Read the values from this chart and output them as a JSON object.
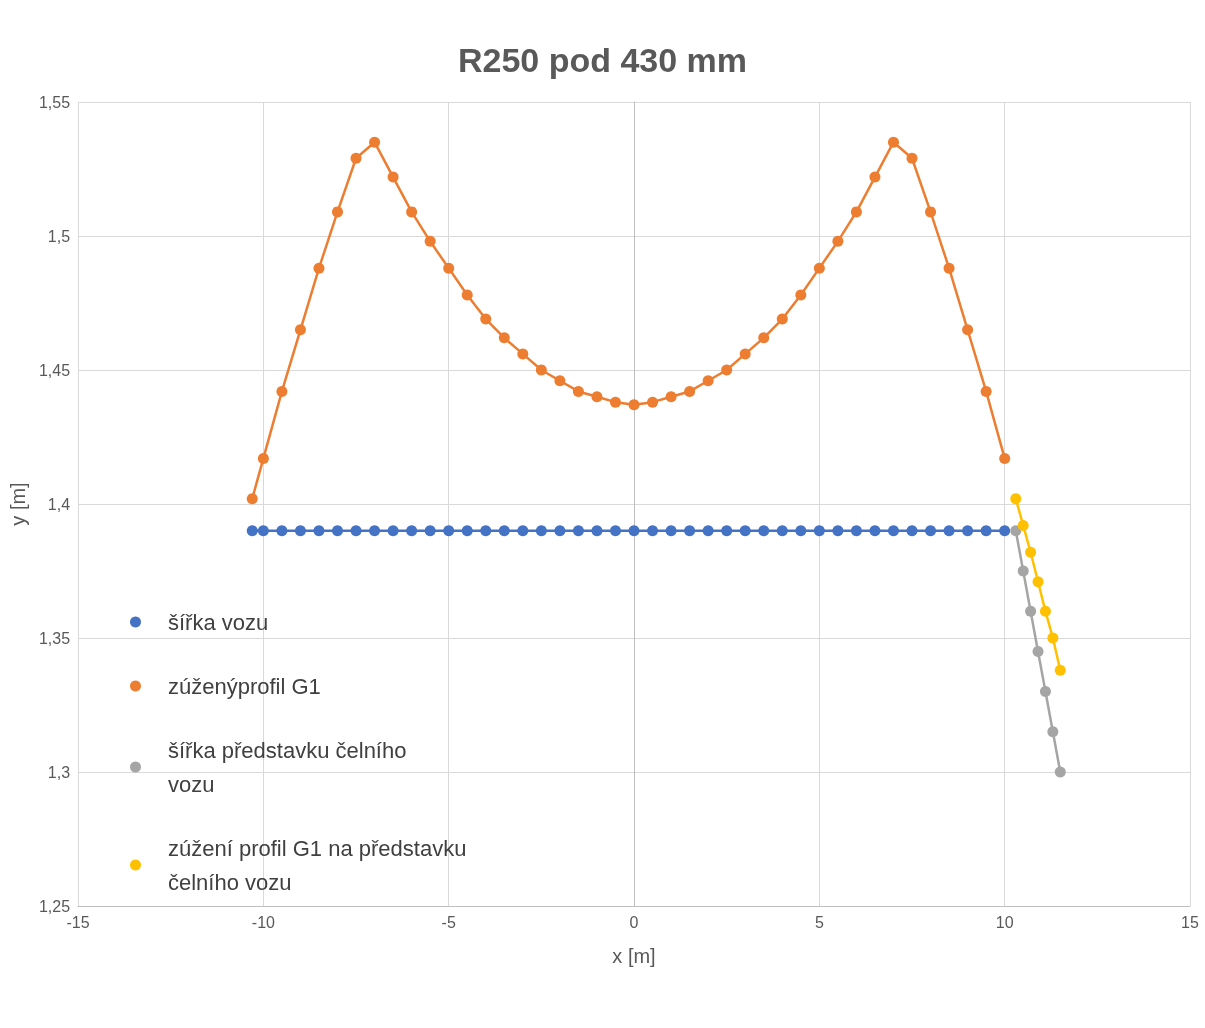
{
  "chart_data": {
    "type": "line",
    "title": "R250 pod 430 mm",
    "xlabel": "x [m]",
    "ylabel": "y [m]",
    "xlim": [
      -15,
      15
    ],
    "xticks": [
      -15,
      -10,
      -5,
      0,
      5,
      10,
      15
    ],
    "ylim": [
      1.25,
      1.55
    ],
    "yticks": [
      {
        "value": 1.25,
        "label": "1,25"
      },
      {
        "value": 1.3,
        "label": "1,3"
      },
      {
        "value": 1.35,
        "label": "1,35"
      },
      {
        "value": 1.4,
        "label": "1,4"
      },
      {
        "value": 1.45,
        "label": "1,45"
      },
      {
        "value": 1.5,
        "label": "1,5"
      },
      {
        "value": 1.55,
        "label": "1,55"
      }
    ],
    "grid": true,
    "legend": "left",
    "marker": "circle",
    "line_style": "solid",
    "series": [
      {
        "name": "šířka vozu",
        "color": "#4472c4",
        "x": [
          -10.3,
          -10,
          -9.5,
          -9,
          -8.5,
          -8,
          -7.5,
          -7,
          -6.5,
          -6,
          -5.5,
          -5,
          -4.5,
          -4,
          -3.5,
          -3,
          -2.5,
          -2,
          -1.5,
          -1,
          -0.5,
          0,
          0.5,
          1,
          1.5,
          2,
          2.5,
          3,
          3.5,
          4,
          4.5,
          5,
          5.5,
          6,
          6.5,
          7,
          7.5,
          8,
          8.5,
          9,
          9.5,
          10
        ],
        "values": [
          1.39,
          1.39,
          1.39,
          1.39,
          1.39,
          1.39,
          1.39,
          1.39,
          1.39,
          1.39,
          1.39,
          1.39,
          1.39,
          1.39,
          1.39,
          1.39,
          1.39,
          1.39,
          1.39,
          1.39,
          1.39,
          1.39,
          1.39,
          1.39,
          1.39,
          1.39,
          1.39,
          1.39,
          1.39,
          1.39,
          1.39,
          1.39,
          1.39,
          1.39,
          1.39,
          1.39,
          1.39,
          1.39,
          1.39,
          1.39,
          1.39,
          1.39
        ]
      },
      {
        "name": "zúženýprofil G1",
        "color": "#ed7d31",
        "x": [
          -10.3,
          -10,
          -9.5,
          -9,
          -8.5,
          -8,
          -7.5,
          -7,
          -6.5,
          -6,
          -5.5,
          -5,
          -4.5,
          -4,
          -3.5,
          -3,
          -2.5,
          -2,
          -1.5,
          -1,
          -0.5,
          0,
          0.5,
          1,
          1.5,
          2,
          2.5,
          3,
          3.5,
          4,
          4.5,
          5,
          5.5,
          6,
          6.5,
          7,
          7.5,
          8,
          8.5,
          9,
          9.5,
          10
        ],
        "values": [
          1.402,
          1.417,
          1.442,
          1.465,
          1.488,
          1.509,
          1.529,
          1.535,
          1.522,
          1.509,
          1.498,
          1.488,
          1.478,
          1.469,
          1.462,
          1.456,
          1.45,
          1.446,
          1.442,
          1.44,
          1.438,
          1.437,
          1.438,
          1.44,
          1.442,
          1.446,
          1.45,
          1.456,
          1.462,
          1.469,
          1.478,
          1.488,
          1.498,
          1.509,
          1.522,
          1.535,
          1.529,
          1.509,
          1.488,
          1.465,
          1.442,
          1.417
        ]
      },
      {
        "name": "šířka představku čelního vozu",
        "color": "#a5a5a5",
        "x": [
          10.3,
          10.5,
          10.7,
          10.9,
          11.1,
          11.3,
          11.5
        ],
        "values": [
          1.39,
          1.375,
          1.36,
          1.345,
          1.33,
          1.315,
          1.3
        ]
      },
      {
        "name": "zúžení profil G1 na představku čelního vozu",
        "color": "#ffc000",
        "x": [
          10.3,
          10.5,
          10.7,
          10.9,
          11.1,
          11.3,
          11.5
        ],
        "values": [
          1.402,
          1.392,
          1.382,
          1.371,
          1.36,
          1.35,
          1.338
        ]
      }
    ]
  }
}
